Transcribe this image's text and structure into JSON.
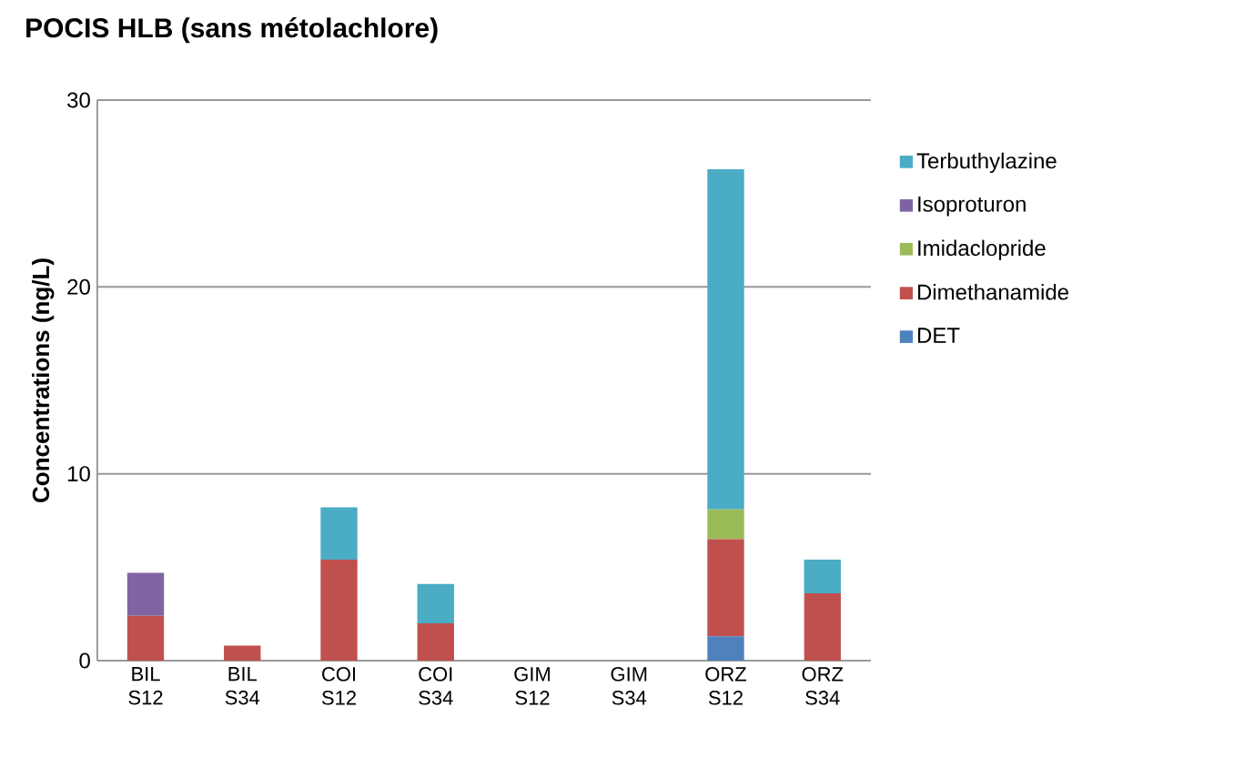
{
  "chart_data": {
    "type": "bar",
    "stacked": true,
    "title": "POCIS HLB (sans métolachlore)",
    "ylabel": "Concentrations (ng/L)",
    "categories": [
      "BIL S12",
      "BIL S34",
      "COI S12",
      "COI S34",
      "GIM S12",
      "GIM S34",
      "ORZ S12",
      "ORZ S34"
    ],
    "series": [
      {
        "name": "DET",
        "color": "#4f81bd",
        "values": [
          null,
          null,
          null,
          null,
          null,
          null,
          1.3,
          null
        ]
      },
      {
        "name": "Dimethanamide",
        "color": "#c0504d",
        "values": [
          2.4,
          0.8,
          5.4,
          2.0,
          null,
          null,
          5.2,
          3.6
        ]
      },
      {
        "name": "Imidaclopride",
        "color": "#9bbb59",
        "values": [
          null,
          null,
          null,
          null,
          null,
          null,
          1.6,
          null
        ]
      },
      {
        "name": "Isoproturon",
        "color": "#8064a2",
        "values": [
          2.3,
          null,
          null,
          null,
          null,
          null,
          null,
          null
        ]
      },
      {
        "name": "Terbuthylazine",
        "color": "#4bacc6",
        "values": [
          null,
          null,
          2.8,
          2.1,
          null,
          null,
          18.2,
          1.8
        ]
      }
    ],
    "ylim": [
      0,
      30
    ],
    "yticks": [
      0,
      10,
      20,
      30
    ],
    "grid": "y",
    "legend": "right"
  }
}
